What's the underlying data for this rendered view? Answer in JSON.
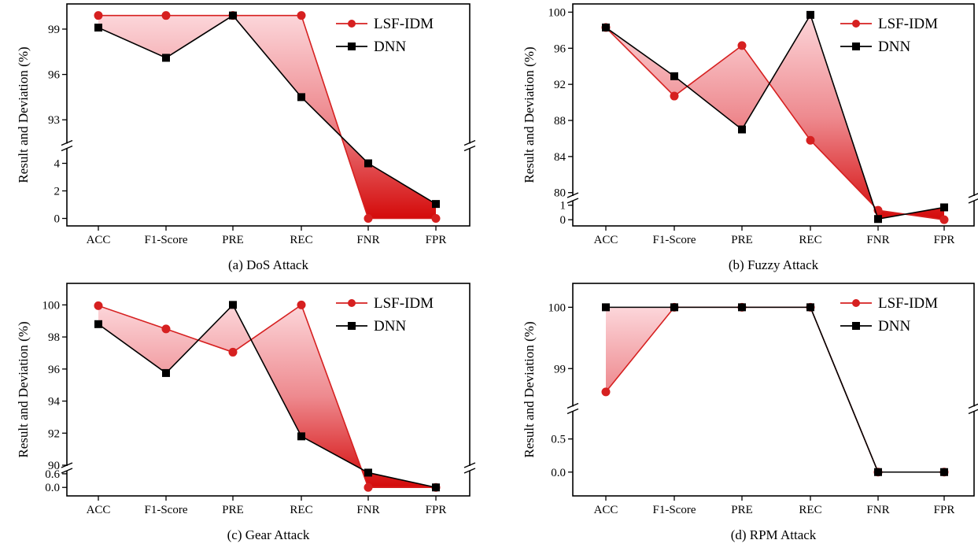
{
  "figure": {
    "series_colors": {
      "LSF-IDM": "#d62020",
      "DNN": "#000000"
    },
    "fill_color_light": "#fcd0d4",
    "fill_color_dark": "#d40a0a"
  },
  "chart_data": [
    {
      "type": "line",
      "caption": "(a) DoS Attack",
      "ylabel": "Result and Deviation (%)",
      "categories": [
        "ACC",
        "F1-Score",
        "PRE",
        "REC",
        "FNR",
        "FPR"
      ],
      "broken_axis": true,
      "upper_axis": {
        "ylim": [
          91.5,
          100.3
        ],
        "ticks": [
          93,
          96,
          99
        ]
      },
      "lower_axis": {
        "ylim": [
          -0.2,
          5.0
        ],
        "ticks": [
          0,
          2,
          4
        ]
      },
      "legend_position": "top-right",
      "series": [
        {
          "name": "LSF-IDM",
          "marker": "circle",
          "values": [
            99.9,
            99.9,
            99.9,
            99.9,
            0.0,
            0.0
          ]
        },
        {
          "name": "DNN",
          "marker": "square",
          "values": [
            99.1,
            97.1,
            99.9,
            94.5,
            4.0,
            1.05
          ]
        }
      ]
    },
    {
      "type": "line",
      "caption": "(b) Fuzzy Attack",
      "ylabel": "Result and Deviation (%)",
      "categories": [
        "ACC",
        "F1-Score",
        "PRE",
        "REC",
        "FNR",
        "FPR"
      ],
      "broken_axis": true,
      "upper_axis": {
        "ylim": [
          79.8,
          100.3
        ],
        "ticks": [
          80,
          84,
          88,
          92,
          96,
          100
        ]
      },
      "lower_axis": {
        "ylim": [
          -0.1,
          1.2
        ],
        "ticks": [
          0,
          1
        ]
      },
      "legend_position": "top-right",
      "series": [
        {
          "name": "LSF-IDM",
          "marker": "circle",
          "values": [
            98.3,
            90.7,
            96.3,
            85.8,
            0.65,
            0.0
          ]
        },
        {
          "name": "DNN",
          "marker": "square",
          "values": [
            98.3,
            92.9,
            87.0,
            99.7,
            0.05,
            0.85
          ]
        }
      ]
    },
    {
      "type": "line",
      "caption": "(c) Gear Attack",
      "ylabel": "Result and Deviation (%)",
      "categories": [
        "ACC",
        "F1-Score",
        "PRE",
        "REC",
        "FNR",
        "FPR"
      ],
      "broken_axis": true,
      "upper_axis": {
        "ylim": [
          90,
          101
        ],
        "ticks": [
          90,
          92,
          94,
          96,
          98,
          100
        ]
      },
      "lower_axis": {
        "ylim": [
          -0.2,
          0.7
        ],
        "ticks": [
          0.0,
          0.6
        ]
      },
      "legend_position": "top-right",
      "series": [
        {
          "name": "LSF-IDM",
          "marker": "circle",
          "values": [
            99.95,
            98.5,
            97.05,
            100.0,
            0.0,
            0.0
          ]
        },
        {
          "name": "DNN",
          "marker": "square",
          "values": [
            98.8,
            95.75,
            100.0,
            91.8,
            0.65,
            0.0
          ]
        }
      ]
    },
    {
      "type": "line",
      "caption": "(d) RPM Attack",
      "ylabel": "Result and Deviation (%)",
      "categories": [
        "ACC",
        "F1-Score",
        "PRE",
        "REC",
        "FNR",
        "FPR"
      ],
      "broken_axis": true,
      "upper_axis": {
        "ylim": [
          98.4,
          100.3
        ],
        "ticks": [
          99,
          100
        ]
      },
      "lower_axis": {
        "ylim": [
          -0.3,
          0.9
        ],
        "ticks": [
          0.0,
          0.5
        ]
      },
      "legend_position": "top-right",
      "series": [
        {
          "name": "LSF-IDM",
          "marker": "circle",
          "values": [
            98.62,
            100.0,
            100.0,
            100.0,
            0.0,
            0.0
          ]
        },
        {
          "name": "DNN",
          "marker": "square",
          "values": [
            100.0,
            100.0,
            100.0,
            100.0,
            0.0,
            0.0
          ]
        }
      ]
    }
  ]
}
